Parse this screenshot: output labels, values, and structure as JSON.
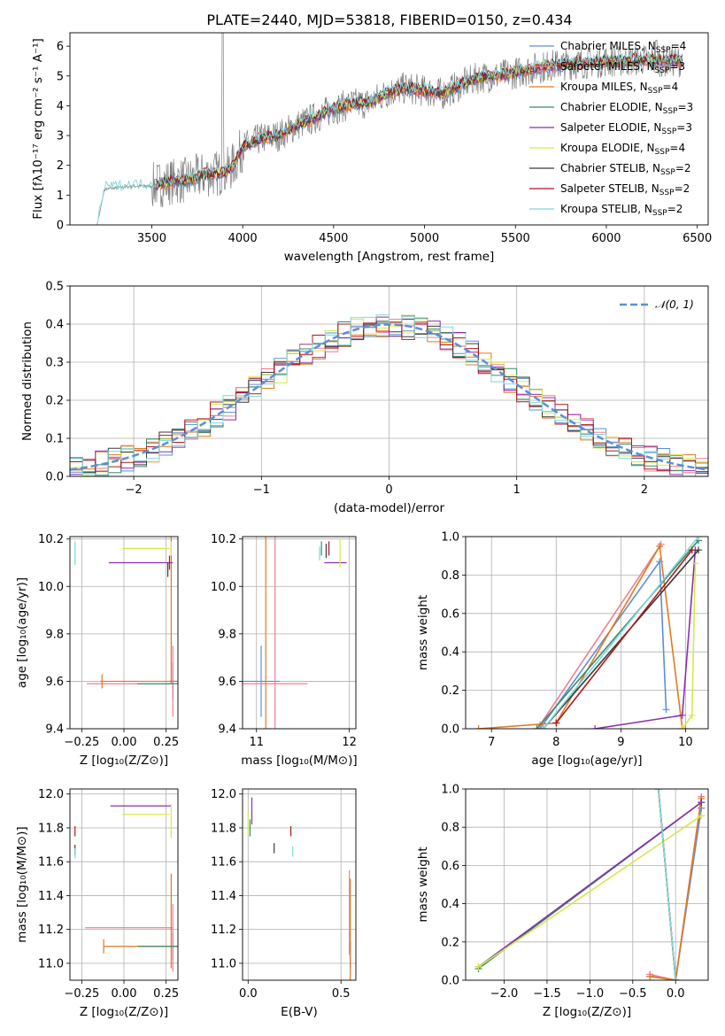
{
  "figure": {
    "title": "PLATE=2440, MJD=53818, FIBERID=0150, z=0.434"
  },
  "colors": {
    "Chabrier MILES": "#5b8fd8",
    "Salpeter MILES": "#f07f8f",
    "Kroupa MILES": "#e07a1f",
    "Chabrier ELODIE": "#3a8a6a",
    "Salpeter ELODIE": "#8b2fb0",
    "Kroupa ELODIE": "#d8e84a",
    "Chabrier STELIB": "#3a3a3a",
    "Salpeter STELIB": "#b01818",
    "Kroupa STELIB": "#7fd8d8",
    "gauss": "#5b8fd8",
    "grid": "#b0b0b0",
    "data": "#808080"
  },
  "legend_spectrum": [
    {
      "key": "Chabrier MILES",
      "name": "Chabrier MILES",
      "nssp": "4"
    },
    {
      "key": "Salpeter MILES",
      "name": "Salpeter MILES",
      "nssp": "3"
    },
    {
      "key": "Kroupa MILES",
      "name": "Kroupa MILES",
      "nssp": "4"
    },
    {
      "key": "Chabrier ELODIE",
      "name": "Chabrier ELODIE",
      "nssp": "3"
    },
    {
      "key": "Salpeter ELODIE",
      "name": "Salpeter ELODIE",
      "nssp": "3"
    },
    {
      "key": "Kroupa ELODIE",
      "name": "Kroupa ELODIE",
      "nssp": "4"
    },
    {
      "key": "Chabrier STELIB",
      "name": "Chabrier STELIB",
      "nssp": "2"
    },
    {
      "key": "Salpeter STELIB",
      "name": "Salpeter STELIB",
      "nssp": "2"
    },
    {
      "key": "Kroupa STELIB",
      "name": "Kroupa STELIB",
      "nssp": "2"
    }
  ],
  "chart_data": [
    {
      "type": "line",
      "id": "spectrum",
      "xlabel": "wavelength [Angstrom, rest frame]",
      "ylabel": "Flux [fλ10⁻¹⁷ erg cm⁻² s⁻¹ A⁻¹]",
      "xlim": [
        3050,
        6560
      ],
      "ylim": [
        0,
        6.45
      ],
      "xticks": [
        3500,
        4000,
        4500,
        5000,
        5500,
        6000,
        6500
      ],
      "yticks": [
        0,
        1,
        2,
        3,
        4,
        5,
        6
      ],
      "continuum": {
        "x": [
          3200,
          3240,
          3400,
          3500,
          3600,
          3700,
          3800,
          3900,
          3950,
          4000,
          4100,
          4200,
          4300,
          4400,
          4500,
          4600,
          4700,
          4800,
          4900,
          5000,
          5100,
          5200,
          5300,
          5400,
          5500,
          5600,
          5700,
          5800,
          5900,
          6000,
          6100,
          6200,
          6300,
          6400
        ],
        "y": [
          0,
          1.2,
          1.3,
          1.3,
          1.45,
          1.5,
          1.7,
          1.75,
          2.0,
          2.6,
          2.9,
          3.0,
          3.35,
          3.6,
          3.9,
          4.05,
          4.1,
          4.45,
          4.6,
          4.5,
          4.4,
          4.7,
          4.95,
          5.0,
          5.1,
          5.25,
          5.35,
          5.4,
          5.45,
          5.5,
          5.5,
          5.55,
          5.5,
          5.5
        ]
      }
    },
    {
      "type": "line",
      "id": "residuals",
      "xlabel": "(data-model)/error",
      "ylabel": "Normed distribution",
      "xlim": [
        -2.5,
        2.5
      ],
      "ylim": [
        0,
        0.5
      ],
      "xticks": [
        -2,
        -1,
        0,
        1,
        2
      ],
      "yticks": [
        0.0,
        0.1,
        0.2,
        0.3,
        0.4,
        0.5
      ],
      "legend": "𝒩(0, 1)",
      "series": [
        {
          "name": "𝒩(0, 1)",
          "mu": 0,
          "sigma": 1
        }
      ]
    },
    {
      "type": "scatter",
      "id": "z-vs-age",
      "xlabel": "Z [log₁₀(Z/Z⊙)]",
      "ylabel": "age  [log₁₀(age/yr)]",
      "xlim": [
        -0.32,
        0.32
      ],
      "ylim": [
        9.4,
        10.21
      ],
      "xticks": [
        -0.25,
        0.0,
        0.25
      ],
      "yticks": [
        9.4,
        9.6,
        9.8,
        10.0,
        10.2
      ],
      "points": [
        {
          "s": "Chabrier MILES",
          "x": 0.29,
          "y": 9.6,
          "xe": 0.0,
          "ye": 0.08
        },
        {
          "s": "Salpeter MILES",
          "x": 0.29,
          "y": 9.6,
          "xe": 0.02,
          "ye": 0.15
        },
        {
          "s": "Salpeter MILES",
          "x": 0.03,
          "y": 9.59,
          "xe": 0.25,
          "ye": 0.0
        },
        {
          "s": "Kroupa MILES",
          "x": -0.13,
          "y": 9.6,
          "xe": 0.0,
          "ye": 0.0
        },
        {
          "s": "Kroupa MILES",
          "x": 0.28,
          "y": 9.6,
          "xe": 0.42,
          "ye": 0.01
        },
        {
          "s": "Kroupa MILES",
          "x": 0.28,
          "y": 10.08,
          "xe": 0.0,
          "ye": 0.48
        },
        {
          "s": "Chabrier ELODIE",
          "x": 0.28,
          "y": 9.59,
          "xe": 0.2,
          "ye": 0.0
        },
        {
          "s": "Salpeter ELODIE",
          "x": 0.1,
          "y": 10.1,
          "xe": 0.19,
          "ye": 0.0
        },
        {
          "s": "Kroupa ELODIE",
          "x": 0.13,
          "y": 10.16,
          "xe": 0.14,
          "ye": 0.0
        },
        {
          "s": "Kroupa ELODIE",
          "x": 0.28,
          "y": 10.16,
          "xe": 0.0,
          "ye": 0.0
        },
        {
          "s": "Chabrier STELIB",
          "x": 0.26,
          "y": 10.07,
          "xe": 0.0,
          "ye": 0.03
        },
        {
          "s": "Salpeter STELIB",
          "x": 0.27,
          "y": 10.1,
          "xe": 0.0,
          "ye": 0.0
        },
        {
          "s": "Kroupa STELIB",
          "x": -0.29,
          "y": 10.14,
          "xe": 0.0,
          "ye": 0.05
        }
      ]
    },
    {
      "type": "scatter",
      "id": "mass-vs-age",
      "xlabel": "mass [log₁₀(M/M⊙)]",
      "ylabel": "",
      "xlim": [
        10.85,
        12.07
      ],
      "ylim": [
        9.4,
        10.21
      ],
      "xticks": [
        11,
        12
      ],
      "yticks": [
        9.4,
        9.6,
        9.8,
        10.0,
        10.2
      ],
      "points": [
        {
          "s": "Chabrier MILES",
          "x": 11.05,
          "y": 9.6,
          "xe": 0.2,
          "ye": 0.15
        },
        {
          "s": "Salpeter MILES",
          "x": 11.2,
          "y": 9.59,
          "xe": 0.35,
          "ye": 0.0
        },
        {
          "s": "Salpeter MILES",
          "x": 11.2,
          "y": 9.85,
          "xe": 0.0,
          "ye": 0.55
        },
        {
          "s": "Kroupa MILES",
          "x": 11.1,
          "y": 9.85,
          "xe": 0.0,
          "ye": 0.5
        },
        {
          "s": "Chabrier ELODIE",
          "x": 11.7,
          "y": 10.16,
          "xe": 0.0,
          "ye": 0.03
        },
        {
          "s": "Salpeter ELODIE",
          "x": 11.85,
          "y": 10.1,
          "xe": 0.12,
          "ye": 0.0
        },
        {
          "s": "Kroupa ELODIE",
          "x": 11.9,
          "y": 10.14,
          "xe": 0.0,
          "ye": 0.06
        },
        {
          "s": "Chabrier STELIB",
          "x": 11.75,
          "y": 10.15,
          "xe": 0.0,
          "ye": 0.03
        },
        {
          "s": "Salpeter STELIB",
          "x": 11.78,
          "y": 10.16,
          "xe": 0.0,
          "ye": 0.03
        },
        {
          "s": "Kroupa STELIB",
          "x": 11.68,
          "y": 10.14,
          "xe": 0.0,
          "ye": 0.03
        }
      ]
    },
    {
      "type": "line",
      "id": "age-vs-weight",
      "xlabel": "age  [log₁₀(age/yr)]",
      "ylabel": "mass weight",
      "xlim": [
        6.6,
        10.35
      ],
      "ylim": [
        0,
        1.0
      ],
      "xticks": [
        7,
        8,
        9,
        10
      ],
      "yticks": [
        0.0,
        0.2,
        0.4,
        0.6,
        0.8,
        1.0
      ],
      "series": [
        {
          "name": "Chabrier MILES",
          "x": [
            7.75,
            9.6,
            9.7
          ],
          "y": [
            0.0,
            0.87,
            0.1
          ]
        },
        {
          "name": "Salpeter MILES",
          "x": [
            7.75,
            9.62
          ],
          "y": [
            0.02,
            0.96
          ]
        },
        {
          "name": "Kroupa MILES",
          "x": [
            6.8,
            8.0,
            9.6,
            9.95,
            10.0
          ],
          "y": [
            0.0,
            0.03,
            0.95,
            0.0,
            0.0
          ]
        },
        {
          "name": "Chabrier ELODIE",
          "x": [
            7.7,
            10.2
          ],
          "y": [
            0.0,
            0.98
          ]
        },
        {
          "name": "Salpeter ELODIE",
          "x": [
            8.6,
            9.95,
            10.15
          ],
          "y": [
            0.0,
            0.07,
            0.93
          ]
        },
        {
          "name": "Kroupa ELODIE",
          "x": [
            9.95,
            10.1,
            10.15
          ],
          "y": [
            0.0,
            0.07,
            0.86
          ]
        },
        {
          "name": "Chabrier STELIB",
          "x": [
            7.8,
            10.2
          ],
          "y": [
            0.0,
            0.93
          ]
        },
        {
          "name": "Salpeter STELIB",
          "x": [
            8.0,
            10.1
          ],
          "y": [
            0.03,
            0.93
          ]
        },
        {
          "name": "Kroupa STELIB",
          "x": [
            7.8,
            10.2
          ],
          "y": [
            0.0,
            1.0
          ]
        }
      ]
    },
    {
      "type": "scatter",
      "id": "z-vs-mass",
      "xlabel": "Z [log₁₀(Z/Z⊙)]",
      "ylabel": "mass [log₁₀(M/M⊙)]",
      "xlim": [
        -0.32,
        0.32
      ],
      "ylim": [
        10.9,
        12.03
      ],
      "xticks": [
        -0.25,
        0.0,
        0.25
      ],
      "yticks": [
        11.0,
        11.2,
        11.4,
        11.6,
        11.8,
        12.0
      ],
      "points": [
        {
          "s": "Chabrier MILES",
          "x": 0.29,
          "y": 11.1,
          "xe": 0.0,
          "ye": 0.08
        },
        {
          "s": "Salpeter MILES",
          "x": 0.03,
          "y": 11.21,
          "xe": 0.26,
          "ye": 0.0
        },
        {
          "s": "Salpeter MILES",
          "x": 0.29,
          "y": 11.15,
          "xe": 0.0,
          "ye": 0.2
        },
        {
          "s": "Kroupa MILES",
          "x": -0.12,
          "y": 11.1,
          "xe": 0.0,
          "ye": 0.0
        },
        {
          "s": "Kroupa MILES",
          "x": 0.28,
          "y": 11.1,
          "xe": 0.4,
          "ye": 0.0
        },
        {
          "s": "Kroupa MILES",
          "x": 0.28,
          "y": 11.25,
          "xe": 0.0,
          "ye": 0.28
        },
        {
          "s": "Chabrier ELODIE",
          "x": 0.28,
          "y": 11.1,
          "xe": 0.2,
          "ye": 0.0
        },
        {
          "s": "Salpeter ELODIE",
          "x": 0.1,
          "y": 11.93,
          "xe": 0.18,
          "ye": 0.0
        },
        {
          "s": "Kroupa ELODIE",
          "x": 0.13,
          "y": 11.88,
          "xe": 0.14,
          "ye": 0.0
        },
        {
          "s": "Kroupa ELODIE",
          "x": 0.28,
          "y": 11.84,
          "xe": 0.0,
          "ye": 0.1
        },
        {
          "s": "Chabrier STELIB",
          "x": -0.29,
          "y": 11.67,
          "xe": 0.0,
          "ye": 0.03
        },
        {
          "s": "Salpeter STELIB",
          "x": -0.29,
          "y": 11.78,
          "xe": 0.0,
          "ye": 0.03
        },
        {
          "s": "Kroupa STELIB",
          "x": -0.29,
          "y": 11.65,
          "xe": 0.0,
          "ye": 0.03
        }
      ]
    },
    {
      "type": "scatter",
      "id": "ebv-vs-mass",
      "xlabel": "E(B-V)",
      "ylabel": "",
      "xlim": [
        -0.03,
        0.58
      ],
      "ylim": [
        10.9,
        12.03
      ],
      "xticks": [
        0.0,
        0.5
      ],
      "yticks": [
        11.0,
        11.2,
        11.4,
        11.6,
        11.8,
        12.0
      ],
      "points": [
        {
          "s": "Chabrier MILES",
          "x": 0.55,
          "y": 11.05,
          "xe": 0.0,
          "ye": 0.08
        },
        {
          "s": "Salpeter MILES",
          "x": 0.545,
          "y": 11.3,
          "xe": 0.0,
          "ye": 0.25
        },
        {
          "s": "Kroupa MILES",
          "x": 0.55,
          "y": 11.2,
          "xe": 0.0,
          "ye": 0.3
        },
        {
          "s": "Chabrier ELODIE",
          "x": 0.01,
          "y": 11.8,
          "xe": 0.0,
          "ye": 0.05
        },
        {
          "s": "Salpeter ELODIE",
          "x": 0.02,
          "y": 11.9,
          "xe": 0.0,
          "ye": 0.08
        },
        {
          "s": "Kroupa ELODIE",
          "x": 0.0,
          "y": 11.83,
          "xe": 0.0,
          "ye": 0.07
        },
        {
          "s": "Chabrier STELIB",
          "x": 0.14,
          "y": 11.68,
          "xe": 0.0,
          "ye": 0.03
        },
        {
          "s": "Salpeter STELIB",
          "x": 0.23,
          "y": 11.78,
          "xe": 0.0,
          "ye": 0.03
        },
        {
          "s": "Kroupa STELIB",
          "x": 0.24,
          "y": 11.66,
          "xe": 0.0,
          "ye": 0.03
        }
      ]
    },
    {
      "type": "line",
      "id": "z-vs-weight",
      "xlabel": "Z [log₁₀(Z/Z⊙)]",
      "ylabel": "mass weight",
      "xlim": [
        -2.45,
        0.38
      ],
      "ylim": [
        0,
        1.0
      ],
      "xticks": [
        -2.0,
        -1.5,
        -1.0,
        -0.5,
        0.0
      ],
      "yticks": [
        0.0,
        0.2,
        0.4,
        0.6,
        0.8,
        1.0
      ],
      "series": [
        {
          "name": "Chabrier MILES",
          "x": [
            -0.3,
            0.0,
            0.3
          ],
          "y": [
            0.02,
            0.0,
            0.9
          ]
        },
        {
          "name": "Salpeter MILES",
          "x": [
            -0.3,
            0.0,
            0.3
          ],
          "y": [
            0.03,
            0.0,
            0.96
          ]
        },
        {
          "name": "Kroupa MILES",
          "x": [
            -0.3,
            0.0,
            0.3
          ],
          "y": [
            0.02,
            0.0,
            0.95
          ]
        },
        {
          "name": "Chabrier ELODIE",
          "x": [
            -2.3,
            0.3
          ],
          "y": [
            0.06,
            0.93
          ]
        },
        {
          "name": "Salpeter ELODIE",
          "x": [
            -2.3,
            0.3
          ],
          "y": [
            0.07,
            0.93
          ]
        },
        {
          "name": "Kroupa ELODIE",
          "x": [
            -2.3,
            0.3
          ],
          "y": [
            0.07,
            0.86
          ]
        },
        {
          "name": "Chabrier STELIB",
          "x": [
            -0.2,
            0.0
          ],
          "y": [
            1.0,
            0.0
          ]
        },
        {
          "name": "Salpeter STELIB",
          "x": [
            -0.2,
            0.0
          ],
          "y": [
            1.0,
            0.0
          ]
        },
        {
          "name": "Kroupa STELIB",
          "x": [
            -0.2,
            0.0
          ],
          "y": [
            1.0,
            0.0
          ]
        }
      ]
    }
  ]
}
